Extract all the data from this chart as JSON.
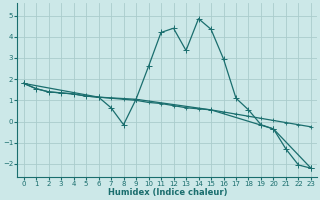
{
  "xlabel": "Humidex (Indice chaleur)",
  "bg_color": "#cce8e8",
  "grid_color": "#aacccc",
  "line_color": "#1a6e6e",
  "xlim": [
    -0.5,
    23.5
  ],
  "ylim": [
    -2.6,
    5.6
  ],
  "yticks": [
    -2,
    -1,
    0,
    1,
    2,
    3,
    4,
    5
  ],
  "xticks": [
    0,
    1,
    2,
    3,
    4,
    5,
    6,
    7,
    8,
    9,
    10,
    11,
    12,
    13,
    14,
    15,
    16,
    17,
    18,
    19,
    20,
    21,
    22,
    23
  ],
  "series1_x": [
    0,
    1,
    2,
    3,
    4,
    5,
    6,
    7,
    8,
    9,
    10,
    11,
    12,
    13,
    14,
    15,
    16,
    17,
    18,
    19,
    20,
    21,
    22,
    23
  ],
  "series1_y": [
    1.8,
    1.55,
    1.4,
    1.35,
    1.3,
    1.2,
    1.15,
    1.1,
    1.05,
    1.0,
    0.9,
    0.85,
    0.75,
    0.65,
    0.6,
    0.55,
    0.45,
    0.35,
    0.25,
    0.15,
    0.05,
    -0.05,
    -0.15,
    -0.25
  ],
  "series2_x": [
    0,
    1,
    2,
    3,
    4,
    5,
    6,
    7,
    8,
    9,
    10,
    11,
    12,
    13,
    14,
    15,
    16,
    17,
    18,
    19,
    20,
    21,
    22,
    23
  ],
  "series2_y": [
    1.8,
    1.55,
    1.4,
    1.35,
    1.3,
    1.2,
    1.15,
    0.65,
    -0.15,
    1.05,
    2.6,
    4.2,
    4.4,
    3.35,
    4.85,
    4.35,
    2.95,
    1.1,
    0.55,
    -0.15,
    -0.35,
    -1.3,
    -2.05,
    -2.2
  ],
  "series3_x": [
    0,
    6,
    9,
    15,
    20,
    23
  ],
  "series3_y": [
    1.8,
    1.15,
    1.05,
    0.55,
    -0.35,
    -2.2
  ],
  "marker": "+",
  "markersize": 4,
  "linewidth": 0.9
}
